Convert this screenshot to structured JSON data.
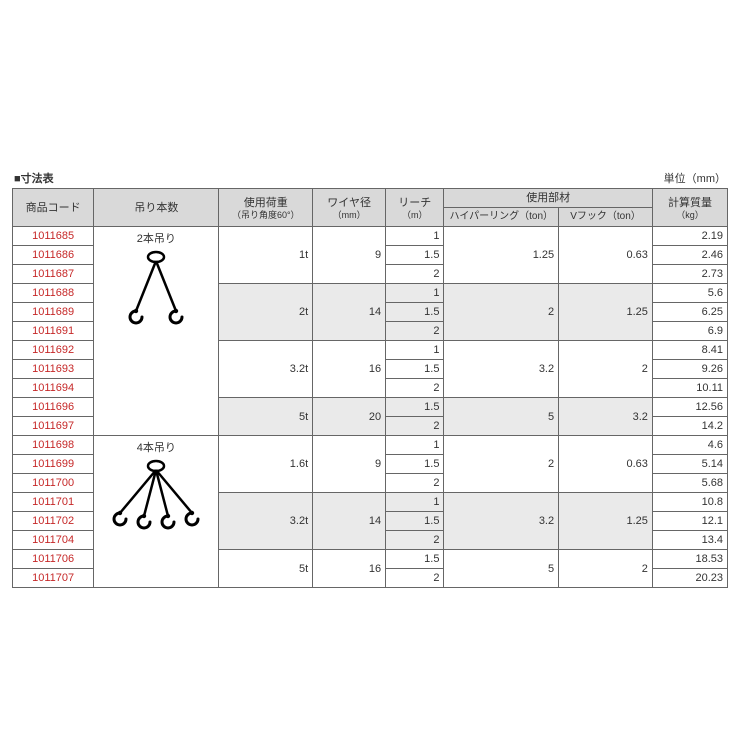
{
  "title": "■寸法表",
  "unit": "単位（mm）",
  "headers": {
    "code": "商品コード",
    "hang": "吊り本数",
    "load": "使用荷重",
    "load_sub": "（吊り角度60°）",
    "wire": "ワイヤ径",
    "wire_unit": "（mm）",
    "reach": "リーチ",
    "reach_unit": "（m）",
    "parts": "使用部材",
    "ring": "ハイパーリング（ton）",
    "hook": "Vフック（ton）",
    "weight": "計算質量",
    "weight_unit": "（kg）"
  },
  "hang_label_2": "2本吊り",
  "hang_label_4": "4本吊り",
  "colors": {
    "code": "#c62828",
    "border": "#666666",
    "header_bg": "#d9d9d9",
    "shade_bg": "#eaeaea",
    "white": "#ffffff",
    "text": "#333333",
    "hook_stroke": "#000000"
  },
  "typography": {
    "base_fontsize": 11,
    "sub_fontsize": 9
  },
  "groups": [
    {
      "shade": false,
      "load": "1t",
      "wire": 9,
      "ring": "1.25",
      "hook": "0.63",
      "rows": [
        {
          "code": "1011685",
          "reach": "1",
          "weight": "2.19"
        },
        {
          "code": "1011686",
          "reach": "1.5",
          "weight": "2.46"
        },
        {
          "code": "1011687",
          "reach": "2",
          "weight": "2.73"
        }
      ]
    },
    {
      "shade": true,
      "load": "2t",
      "wire": 14,
      "ring": "2",
      "hook": "1.25",
      "rows": [
        {
          "code": "1011688",
          "reach": "1",
          "weight": "5.6"
        },
        {
          "code": "1011689",
          "reach": "1.5",
          "weight": "6.25"
        },
        {
          "code": "1011691",
          "reach": "2",
          "weight": "6.9"
        }
      ]
    },
    {
      "shade": false,
      "load": "3.2t",
      "wire": 16,
      "ring": "3.2",
      "hook": "2",
      "rows": [
        {
          "code": "1011692",
          "reach": "1",
          "weight": "8.41"
        },
        {
          "code": "1011693",
          "reach": "1.5",
          "weight": "9.26"
        },
        {
          "code": "1011694",
          "reach": "2",
          "weight": "10.11"
        }
      ]
    },
    {
      "shade": true,
      "load": "5t",
      "wire": 20,
      "ring": "5",
      "hook": "3.2",
      "rows": [
        {
          "code": "1011696",
          "reach": "1.5",
          "weight": "12.56"
        },
        {
          "code": "1011697",
          "reach": "2",
          "weight": "14.2"
        }
      ]
    },
    {
      "shade": false,
      "load": "1.6t",
      "wire": 9,
      "ring": "2",
      "hook": "0.63",
      "rows": [
        {
          "code": "1011698",
          "reach": "1",
          "weight": "4.6"
        },
        {
          "code": "1011699",
          "reach": "1.5",
          "weight": "5.14"
        },
        {
          "code": "1011700",
          "reach": "2",
          "weight": "5.68"
        }
      ]
    },
    {
      "shade": true,
      "load": "3.2t",
      "wire": 14,
      "ring": "3.2",
      "hook": "1.25",
      "rows": [
        {
          "code": "1011701",
          "reach": "1",
          "weight": "10.8"
        },
        {
          "code": "1011702",
          "reach": "1.5",
          "weight": "12.1"
        },
        {
          "code": "1011704",
          "reach": "2",
          "weight": "13.4"
        }
      ]
    },
    {
      "shade": false,
      "load": "5t",
      "wire": 16,
      "ring": "5",
      "hook": "2",
      "rows": [
        {
          "code": "1011706",
          "reach": "1.5",
          "weight": "18.53"
        },
        {
          "code": "1011707",
          "reach": "2",
          "weight": "20.23"
        }
      ]
    }
  ]
}
